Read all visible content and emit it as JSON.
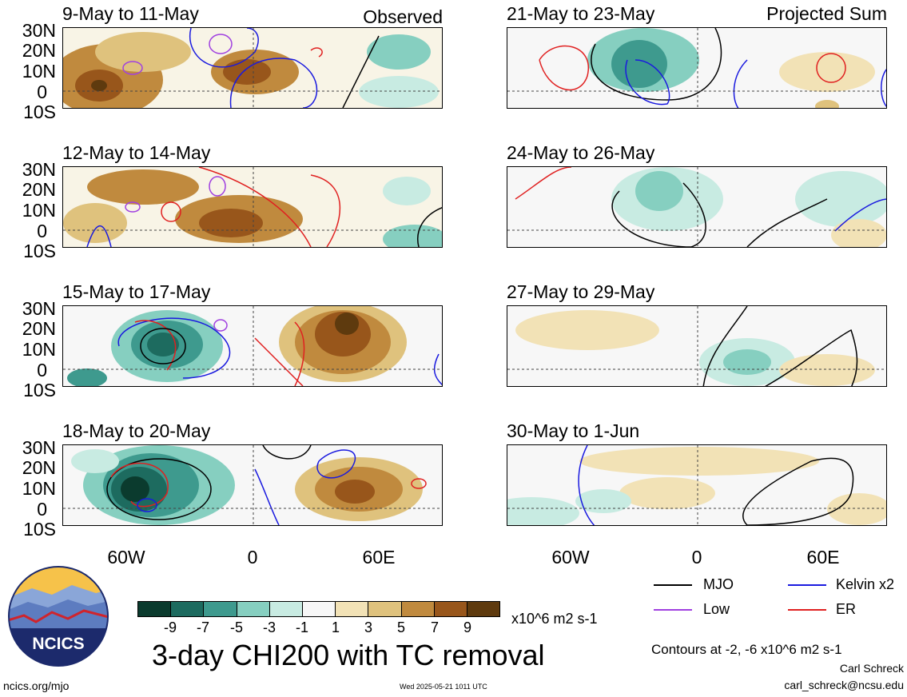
{
  "panels": [
    {
      "title": "9-May to 11-May",
      "tag": "Observed"
    },
    {
      "title": "12-May to 14-May",
      "tag": ""
    },
    {
      "title": "15-May to 17-May",
      "tag": ""
    },
    {
      "title": "18-May to 20-May",
      "tag": ""
    },
    {
      "title": "21-May to 23-May",
      "tag": "Projected Sum"
    },
    {
      "title": "24-May to 26-May",
      "tag": ""
    },
    {
      "title": "27-May to 29-May",
      "tag": ""
    },
    {
      "title": "30-May to 1-Jun",
      "tag": ""
    }
  ],
  "axes": {
    "lat_labels": [
      "30N",
      "20N",
      "10N",
      "0",
      "10S"
    ],
    "lon_labels": [
      "60W",
      "0",
      "60E"
    ]
  },
  "colorbar": {
    "ticks": [
      "-9",
      "-7",
      "-5",
      "-3",
      "-1",
      "1",
      "3",
      "5",
      "7",
      "9"
    ],
    "units": "x10^6 m2 s-1",
    "colors": [
      "#0b3b2e",
      "#1d6b5f",
      "#3e9a8e",
      "#86cfc0",
      "#c8ebe2",
      "#f7f7f7",
      "#f2e2b6",
      "#dfc27d",
      "#c08a3e",
      "#98561b",
      "#5e3a0e"
    ]
  },
  "legend": {
    "mjo": "MJO",
    "kelvin": "Kelvin x2",
    "low": "Low",
    "er": "ER",
    "colors": {
      "mjo": "#000000",
      "kelvin": "#1a1adf",
      "low": "#a040e0",
      "er": "#e02020"
    }
  },
  "main_title": "3-day CHI200 with TC removal",
  "contours_note": "Contours at -2, -6 x10^6 m2 s-1",
  "author": "Carl Schreck",
  "email": "carl_schreck@ncsu.edu",
  "site": "ncics.org/mjo",
  "timestamp": "Wed 2025-05-21 1011 UTC",
  "logo_text": "NCICS"
}
